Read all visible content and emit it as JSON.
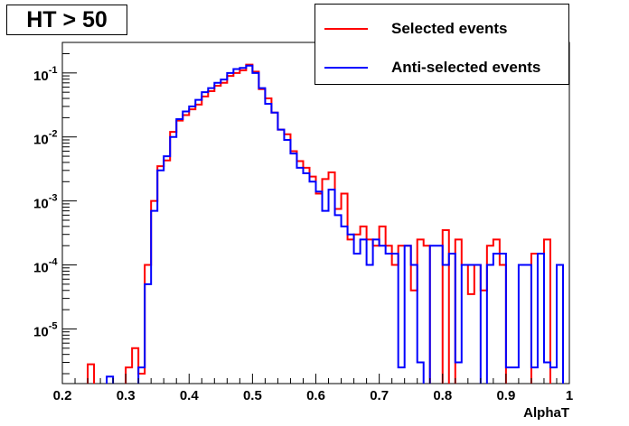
{
  "chart_data": {
    "type": "histogram",
    "title": "HT > 50",
    "xlabel": "AlphaT",
    "ylabel": "",
    "xlim": [
      0.2,
      1.0
    ],
    "ylim": [
      1.4e-06,
      0.3
    ],
    "log_y": true,
    "bin_width": 0.01,
    "x_ticks": [
      "0.2",
      "0.3",
      "0.4",
      "0.5",
      "0.6",
      "0.7",
      "0.8",
      "0.9",
      "1"
    ],
    "y_ticks": [
      {
        "base": "10",
        "exp": "-5"
      },
      {
        "base": "10",
        "exp": "-4"
      },
      {
        "base": "10",
        "exp": "-3"
      },
      {
        "base": "10",
        "exp": "-2"
      },
      {
        "base": "10",
        "exp": "-1"
      }
    ],
    "legend_placement": "top-right",
    "series": [
      {
        "name": "Selected events",
        "color": "#ff0000",
        "bins": [
          [
            0.24,
            2.8e-06
          ],
          [
            0.3,
            2.5e-06
          ],
          [
            0.31,
            5e-06
          ],
          [
            0.32,
            2e-06
          ],
          [
            0.33,
            0.0001
          ],
          [
            0.34,
            0.001
          ],
          [
            0.35,
            0.0035
          ],
          [
            0.36,
            0.0043
          ],
          [
            0.37,
            0.012
          ],
          [
            0.38,
            0.018
          ],
          [
            0.39,
            0.022
          ],
          [
            0.4,
            0.027
          ],
          [
            0.41,
            0.032
          ],
          [
            0.42,
            0.043
          ],
          [
            0.43,
            0.052
          ],
          [
            0.44,
            0.063
          ],
          [
            0.45,
            0.07
          ],
          [
            0.46,
            0.09
          ],
          [
            0.47,
            0.1
          ],
          [
            0.48,
            0.11
          ],
          [
            0.49,
            0.135
          ],
          [
            0.5,
            0.105
          ],
          [
            0.51,
            0.056
          ],
          [
            0.52,
            0.04
          ],
          [
            0.53,
            0.024
          ],
          [
            0.54,
            0.013
          ],
          [
            0.55,
            0.011
          ],
          [
            0.56,
            0.006
          ],
          [
            0.57,
            0.0042
          ],
          [
            0.58,
            0.0033
          ],
          [
            0.59,
            0.0024
          ],
          [
            0.6,
            0.0013
          ],
          [
            0.61,
            0.0022
          ],
          [
            0.62,
            0.0028
          ],
          [
            0.63,
            0.00075
          ],
          [
            0.64,
            0.0013
          ],
          [
            0.65,
            0.00025
          ],
          [
            0.66,
            0.0003
          ],
          [
            0.67,
            0.0004
          ],
          [
            0.68,
            0.00025
          ],
          [
            0.69,
            0.0002
          ],
          [
            0.7,
            0.0004
          ],
          [
            0.71,
            0.0002
          ],
          [
            0.72,
            0.0001
          ],
          [
            0.73,
            0.0002
          ],
          [
            0.74,
            0.0002
          ],
          [
            0.75,
            4e-05
          ],
          [
            0.76,
            0.00025
          ],
          [
            0.77,
            0.0002
          ],
          [
            0.8,
            0.00035
          ],
          [
            0.82,
            0.00025
          ],
          [
            0.83,
            0.0001
          ],
          [
            0.84,
            3.5e-05
          ],
          [
            0.85,
            0.0001
          ],
          [
            0.86,
            4e-05
          ],
          [
            0.87,
            0.0002
          ],
          [
            0.88,
            0.00025
          ],
          [
            0.89,
            0.0001
          ],
          [
            0.94,
            0.00015
          ],
          [
            0.95,
            0.00015
          ],
          [
            0.96,
            0.00025
          ]
        ]
      },
      {
        "name": "Anti-selected events",
        "color": "#0000ff",
        "bins": [
          [
            0.27,
            1.8e-06
          ],
          [
            0.32,
            2.5e-06
          ],
          [
            0.33,
            5e-05
          ],
          [
            0.34,
            0.0007
          ],
          [
            0.35,
            0.003
          ],
          [
            0.36,
            0.005
          ],
          [
            0.37,
            0.01
          ],
          [
            0.38,
            0.019
          ],
          [
            0.39,
            0.025
          ],
          [
            0.4,
            0.03
          ],
          [
            0.41,
            0.038
          ],
          [
            0.42,
            0.05
          ],
          [
            0.43,
            0.058
          ],
          [
            0.44,
            0.07
          ],
          [
            0.45,
            0.079
          ],
          [
            0.46,
            0.1
          ],
          [
            0.47,
            0.115
          ],
          [
            0.48,
            0.12
          ],
          [
            0.49,
            0.13
          ],
          [
            0.5,
            0.1
          ],
          [
            0.51,
            0.058
          ],
          [
            0.52,
            0.033
          ],
          [
            0.53,
            0.024
          ],
          [
            0.54,
            0.013
          ],
          [
            0.55,
            0.009
          ],
          [
            0.56,
            0.0055
          ],
          [
            0.57,
            0.0033
          ],
          [
            0.58,
            0.0027
          ],
          [
            0.59,
            0.002
          ],
          [
            0.6,
            0.0014
          ],
          [
            0.61,
            0.0007
          ],
          [
            0.62,
            0.0015
          ],
          [
            0.63,
            0.0006
          ],
          [
            0.64,
            0.0004
          ],
          [
            0.65,
            0.0003
          ],
          [
            0.66,
            0.00015
          ],
          [
            0.67,
            0.00025
          ],
          [
            0.68,
            0.0001
          ],
          [
            0.69,
            0.00025
          ],
          [
            0.7,
            0.0002
          ],
          [
            0.71,
            0.00015
          ],
          [
            0.72,
            0.00015
          ],
          [
            0.73,
            2.5e-06
          ],
          [
            0.74,
            0.0002
          ],
          [
            0.75,
            0.0001
          ],
          [
            0.76,
            3e-06
          ],
          [
            0.78,
            0.0002
          ],
          [
            0.79,
            0.0002
          ],
          [
            0.8,
            0.0001
          ],
          [
            0.81,
            0.00015
          ],
          [
            0.82,
            3e-06
          ],
          [
            0.83,
            0.0001
          ],
          [
            0.84,
            0.0001
          ],
          [
            0.85,
            0.0001
          ],
          [
            0.87,
            0.0001
          ],
          [
            0.88,
            0.00015
          ],
          [
            0.89,
            0.00015
          ],
          [
            0.9,
            2.5e-06
          ],
          [
            0.91,
            2.5e-06
          ],
          [
            0.92,
            0.0001
          ],
          [
            0.93,
            0.0001
          ],
          [
            0.94,
            2.5e-06
          ],
          [
            0.95,
            0.00015
          ],
          [
            0.96,
            3e-06
          ],
          [
            0.97,
            2.5e-06
          ],
          [
            0.98,
            0.0001
          ]
        ]
      }
    ]
  }
}
